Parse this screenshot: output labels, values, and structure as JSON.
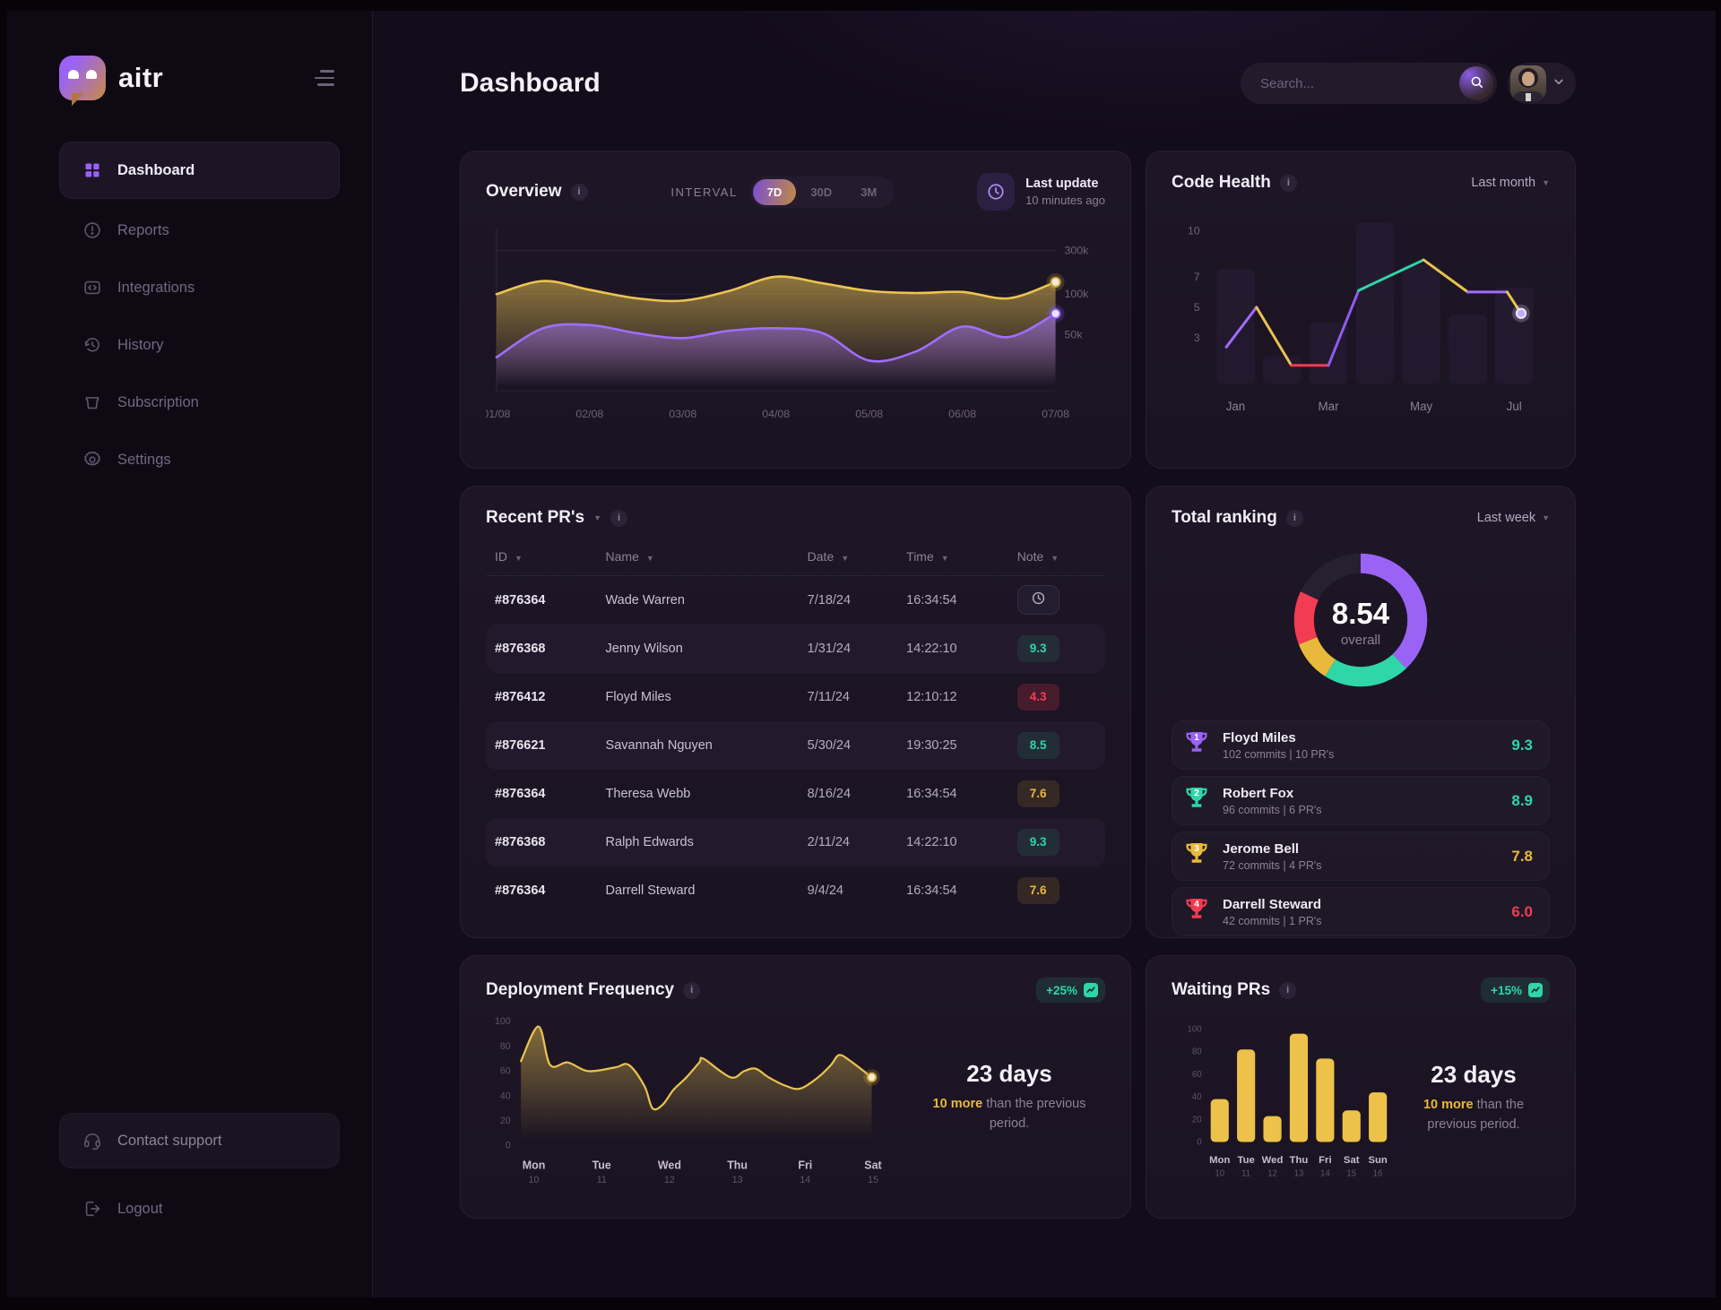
{
  "app": {
    "logo_text": "aitr"
  },
  "header": {
    "title": "Dashboard",
    "search_placeholder": "Search..."
  },
  "sidebar": {
    "items": [
      {
        "label": "Dashboard",
        "icon": "dashboard-grid-icon",
        "active": true
      },
      {
        "label": "Reports",
        "icon": "reports-alert-icon",
        "active": false
      },
      {
        "label": "Integrations",
        "icon": "integrations-code-icon",
        "active": false
      },
      {
        "label": "History",
        "icon": "history-clock-icon",
        "active": false
      },
      {
        "label": "Subscription",
        "icon": "subscription-box-icon",
        "active": false
      },
      {
        "label": "Settings",
        "icon": "settings-gear-icon",
        "active": false
      }
    ],
    "support_label": "Contact support",
    "logout_label": "Logout"
  },
  "overview": {
    "title": "Overview",
    "interval_label": "INTERVAL",
    "intervals": [
      "7D",
      "30D",
      "3M"
    ],
    "active_interval": "7D",
    "last_update_label": "Last update",
    "last_update_value": "10 minutes ago"
  },
  "code_health": {
    "title": "Code Health",
    "period": "Last month"
  },
  "recent_prs": {
    "title": "Recent PR's",
    "columns": [
      "ID",
      "Name",
      "Date",
      "Time",
      "Note"
    ],
    "rows": [
      {
        "id": "#876364",
        "name": "Wade Warren",
        "date": "7/18/24",
        "time": "16:34:54",
        "note": "",
        "note_type": "pending",
        "highlight": false
      },
      {
        "id": "#876368",
        "name": "Jenny Wilson",
        "date": "1/31/24",
        "time": "14:22:10",
        "note": "9.3",
        "note_type": "good",
        "highlight": true
      },
      {
        "id": "#876412",
        "name": "Floyd Miles",
        "date": "7/11/24",
        "time": "12:10:12",
        "note": "4.3",
        "note_type": "bad",
        "highlight": false
      },
      {
        "id": "#876621",
        "name": "Savannah Nguyen",
        "date": "5/30/24",
        "time": "19:30:25",
        "note": "8.5",
        "note_type": "good",
        "highlight": true
      },
      {
        "id": "#876364",
        "name": "Theresa Webb",
        "date": "8/16/24",
        "time": "16:34:54",
        "note": "7.6",
        "note_type": "warn",
        "highlight": false
      },
      {
        "id": "#876368",
        "name": "Ralph Edwards",
        "date": "2/11/24",
        "time": "14:22:10",
        "note": "9.3",
        "note_type": "good",
        "highlight": true
      },
      {
        "id": "#876364",
        "name": "Darrell Steward",
        "date": "9/4/24",
        "time": "16:34:54",
        "note": "7.6",
        "note_type": "warn",
        "highlight": false
      }
    ]
  },
  "ranking": {
    "title": "Total ranking",
    "period": "Last week",
    "overall_value": "8.54",
    "overall_label": "overall",
    "items": [
      {
        "rank": "1",
        "name": "Floyd Miles",
        "stats": "102 commits  |  10 PR's",
        "score": "9.3",
        "color": "#9a63f5",
        "score_color": "#2fd6a8"
      },
      {
        "rank": "2",
        "name": "Robert Fox",
        "stats": "96 commits  |  6 PR's",
        "score": "8.9",
        "color": "#2fd6a8",
        "score_color": "#2fd6a8"
      },
      {
        "rank": "3",
        "name": "Jerome Bell",
        "stats": "72 commits  |  4 PR's",
        "score": "7.8",
        "color": "#e9b93b",
        "score_color": "#e9b93b"
      },
      {
        "rank": "4",
        "name": "Darrell Steward",
        "stats": "42 commits  |  1 PR's",
        "score": "6.0",
        "color": "#f23c52",
        "score_color": "#f23c52"
      }
    ]
  },
  "deployment": {
    "title": "Deployment Frequency",
    "badge": "+25%",
    "stat_value": "23 days",
    "stat_highlight": "10 more",
    "stat_rest": "than the previous period."
  },
  "waiting": {
    "title": "Waiting PRs",
    "badge": "+15%",
    "stat_value": "23 days",
    "stat_highlight": "10 more",
    "stat_rest": "than the previous period."
  },
  "chart_data": [
    {
      "id": "overview",
      "type": "area",
      "title": "Overview",
      "x_labels": [
        "01/08",
        "02/08",
        "03/08",
        "04/08",
        "05/08",
        "06/08",
        "07/08"
      ],
      "y_ticks": [
        {
          "label": "300k",
          "value": 300
        },
        {
          "label": "100k",
          "value": 100
        },
        {
          "label": "50k",
          "value": 50
        }
      ],
      "y_axis_anchors": [
        [
          0,
          0
        ],
        [
          50,
          0.36
        ],
        [
          100,
          0.62
        ],
        [
          300,
          0.9
        ]
      ],
      "legend": "none",
      "grid": "horizontal",
      "series": [
        {
          "name": "series-yellow",
          "color": "#ecc551",
          "values_k": [
            100,
            160,
            120,
            95,
            92,
            115,
            180,
            150,
            115,
            105,
            110,
            95,
            155
          ]
        },
        {
          "name": "series-purple",
          "color": "#a06efc",
          "values_k": [
            30,
            58,
            62,
            52,
            47,
            55,
            58,
            52,
            27,
            35,
            60,
            48,
            76
          ]
        }
      ]
    },
    {
      "id": "code-health",
      "type": "line",
      "title": "Code Health",
      "x_labels": [
        {
          "label": "Jan",
          "month": 0
        },
        {
          "label": "Mar",
          "month": 2
        },
        {
          "label": "May",
          "month": 4
        },
        {
          "label": "Jul",
          "month": 6
        }
      ],
      "x_range": [
        -0.5,
        6.5
      ],
      "y_ticks": [
        10,
        7,
        5,
        3
      ],
      "y_max": 10.8,
      "background_bars": {
        "months": [
          0,
          1,
          2,
          3,
          4,
          5,
          6
        ],
        "values": [
          7.5,
          1.8,
          4.0,
          10.5,
          7.8,
          4.5,
          6.3
        ]
      },
      "line_points": [
        [
          -0.2,
          2.4
        ],
        [
          0.45,
          5.0
        ],
        [
          1.2,
          1.2
        ],
        [
          2.0,
          1.2
        ],
        [
          2.65,
          6.1
        ],
        [
          4.05,
          8.1
        ],
        [
          5.0,
          6.0
        ],
        [
          5.85,
          6.0
        ],
        [
          6.15,
          4.6
        ]
      ],
      "segment_colors": [
        "#a06efc",
        "#e9c34f",
        "#f23c52",
        "#8e5cf0",
        "#2fd6a8",
        "#e9c34f",
        "#a06efc",
        "#e9c34f"
      ]
    },
    {
      "id": "ranking-donut",
      "type": "pie",
      "title": "Total ranking",
      "center_value": "8.54",
      "center_label": "overall",
      "segments": [
        {
          "name": "purple",
          "color": "#9a63f5",
          "percent": 38
        },
        {
          "name": "teal",
          "color": "#2fd6a8",
          "percent": 21
        },
        {
          "name": "yellow",
          "color": "#e9b93b",
          "percent": 10
        },
        {
          "name": "red",
          "color": "#f23c52",
          "percent": 13
        }
      ],
      "track_percent": 18,
      "track_color": "#272031"
    },
    {
      "id": "deployment",
      "type": "area",
      "title": "Deployment Frequency",
      "color": "#e9c34f",
      "y_ticks": [
        0,
        20,
        40,
        60,
        80,
        100
      ],
      "x_labels": [
        {
          "day": "Mon",
          "date": "10"
        },
        {
          "day": "Tue",
          "date": "11"
        },
        {
          "day": "Wed",
          "date": "12"
        },
        {
          "day": "Thu",
          "date": "13"
        },
        {
          "day": "Fri",
          "date": "14"
        },
        {
          "day": "Sat",
          "date": "15"
        }
      ],
      "points": [
        [
          -0.19,
          68
        ],
        [
          0.07,
          96
        ],
        [
          0.24,
          65
        ],
        [
          0.5,
          67
        ],
        [
          0.8,
          60
        ],
        [
          1.2,
          63
        ],
        [
          1.4,
          65
        ],
        [
          1.63,
          48
        ],
        [
          1.75,
          30
        ],
        [
          1.9,
          33
        ],
        [
          2.06,
          45
        ],
        [
          2.25,
          55
        ],
        [
          2.44,
          67
        ],
        [
          2.5,
          70
        ],
        [
          2.9,
          55
        ],
        [
          3.1,
          60
        ],
        [
          3.27,
          62
        ],
        [
          3.46,
          55
        ],
        [
          3.72,
          48
        ],
        [
          3.93,
          46
        ],
        [
          4.19,
          55
        ],
        [
          4.38,
          65
        ],
        [
          4.5,
          73
        ],
        [
          4.67,
          68
        ],
        [
          4.98,
          55
        ]
      ]
    },
    {
      "id": "waiting",
      "type": "bar",
      "title": "Waiting PRs",
      "color": "#edc24a",
      "y_ticks": [
        0,
        20,
        40,
        60,
        80,
        100
      ],
      "categories": [
        {
          "day": "Mon",
          "date": "10"
        },
        {
          "day": "Tue",
          "date": "11"
        },
        {
          "day": "Wed",
          "date": "12"
        },
        {
          "day": "Thu",
          "date": "13"
        },
        {
          "day": "Fri",
          "date": "14"
        },
        {
          "day": "Sat",
          "date": "15"
        },
        {
          "day": "Sun",
          "date": "16"
        }
      ],
      "values": [
        38,
        82,
        23,
        96,
        74,
        28,
        44
      ]
    }
  ]
}
